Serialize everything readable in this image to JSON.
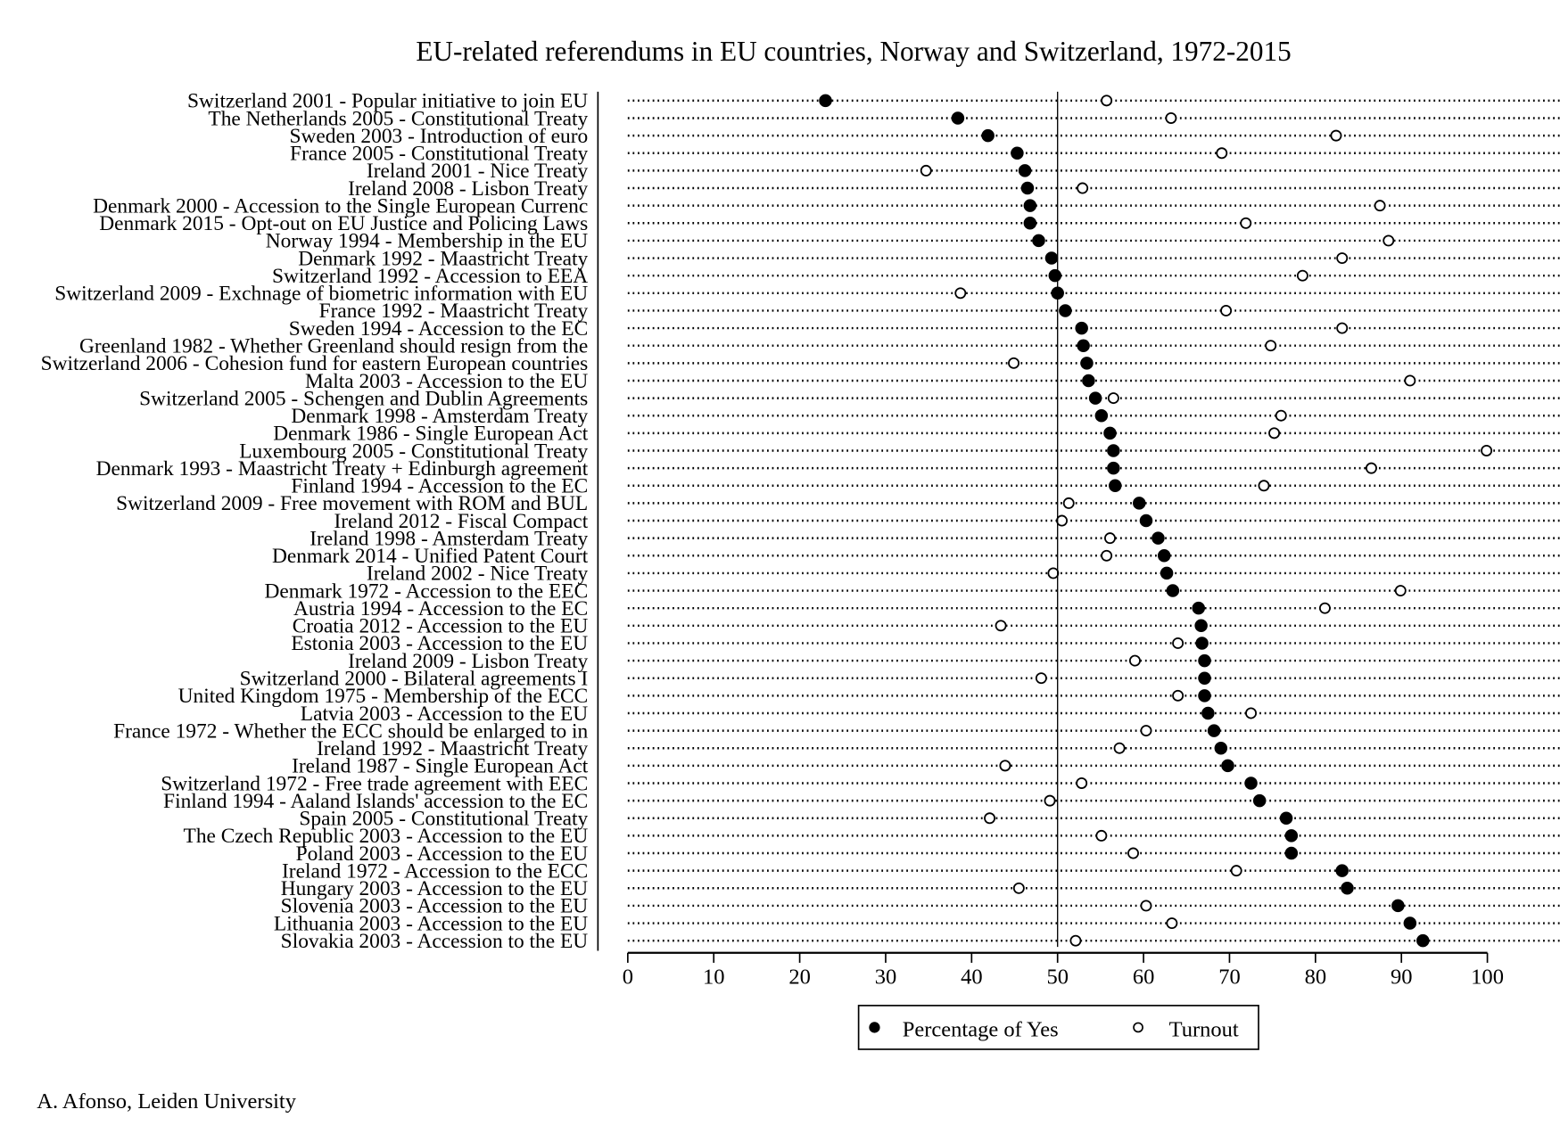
{
  "chart_data": {
    "type": "scatter",
    "title": "EU-related referendums in EU countries, Norway and Switzerland, 1972-2015",
    "xlabel": "",
    "ylabel": "",
    "xlim": [
      0,
      100
    ],
    "xticks": [
      "0",
      "10",
      "20",
      "30",
      "40",
      "50",
      "60",
      "70",
      "80",
      "90",
      "100"
    ],
    "reference_line": 50,
    "legend": {
      "placement": "bottom-center",
      "entries": [
        "Percentage of Yes",
        "Turnout"
      ]
    },
    "categories": [
      "Switzerland 2001 - Popular initiative to join EU",
      "The Netherlands 2005 - Constitutional Treaty",
      "Sweden 2003 - Introduction of euro",
      "France 2005 - Constitutional Treaty",
      "Ireland 2001 - Nice Treaty",
      "Ireland 2008 - Lisbon Treaty",
      "Denmark 2000 - Accession to the Single European Currenc",
      "Denmark 2015 - Opt-out on EU Justice and Policing Laws",
      "Norway 1994 - Membership in the EU",
      "Denmark 1992 - Maastricht Treaty",
      "Switzerland 1992 - Accession to EEA",
      "Switzerland 2009 - Exchnage of biometric information with EU",
      "France 1992 - Maastricht Treaty",
      "Sweden 1994 - Accession to the EC",
      "Greenland 1982 - Whether Greenland should resign from the",
      "Switzerland 2006 - Cohesion fund for eastern European countries",
      "Malta 2003 - Accession to the EU",
      "Switzerland 2005 - Schengen and Dublin Agreements",
      "Denmark 1998 - Amsterdam Treaty",
      "Denmark 1986 - Single European Act",
      "Luxembourg 2005 - Constitutional Treaty",
      "Denmark 1993 - Maastricht Treaty + Edinburgh agreement",
      "Finland 1994 - Accession to the EC",
      "Switzerland 2009 - Free movement with ROM and BUL",
      "Ireland 2012 - Fiscal Compact",
      "Ireland 1998 - Amsterdam Treaty",
      "Denmark 2014 - Unified Patent Court",
      "Ireland 2002 - Nice Treaty",
      "Denmark 1972 - Accession to the EEC",
      "Austria 1994 - Accession to the EC",
      "Croatia 2012 - Accession to the EU",
      "Estonia 2003 - Accession to the EU",
      "Ireland 2009 - Lisbon Treaty",
      "Switzerland 2000 - Bilateral agreements I",
      "United Kingdom 1975 - Membership of the ECC",
      "Latvia 2003 - Accession to the EU",
      "France 1972 - Whether the ECC should be enlarged to in",
      "Ireland 1992 - Maastricht Treaty",
      "Ireland 1987 - Single European Act",
      "Switzerland 1972 - Free trade agreement with EEC",
      "Finland 1994 - Aaland Islands' accession to the EC",
      "Spain 2005 - Constitutional Treaty",
      "The Czech Republic 2003 - Accession to the EU",
      "Poland 2003 - Accession to the EU",
      "Ireland 1972 - Accession to the ECC",
      "Hungary 2003 - Accession to the EU",
      "Slovenia 2003 - Accession to the EU",
      "Lithuania 2003 - Accession to the EU",
      "Slovakia 2003 - Accession to the EU"
    ],
    "series": [
      {
        "name": "Percentage of Yes",
        "marker": "filled-circle",
        "color": "#000000",
        "values": [
          23.0,
          38.4,
          41.9,
          45.3,
          46.2,
          46.5,
          46.8,
          46.8,
          47.8,
          49.3,
          49.7,
          50.0,
          50.9,
          52.8,
          53.0,
          53.4,
          53.6,
          54.4,
          55.1,
          56.1,
          56.5,
          56.5,
          56.7,
          59.5,
          60.3,
          61.7,
          62.4,
          62.7,
          63.4,
          66.4,
          66.7,
          66.8,
          67.1,
          67.1,
          67.1,
          67.5,
          68.2,
          69.0,
          69.8,
          72.5,
          73.5,
          76.6,
          77.2,
          77.2,
          83.1,
          83.7,
          89.6,
          91.0,
          92.5
        ]
      },
      {
        "name": "Turnout",
        "marker": "hollow-circle",
        "color": "#000000",
        "values": [
          55.7,
          63.2,
          82.4,
          69.1,
          34.7,
          52.9,
          87.5,
          71.9,
          88.5,
          83.1,
          78.5,
          38.7,
          69.6,
          83.1,
          74.8,
          44.9,
          91.0,
          56.5,
          76.0,
          75.2,
          99.9,
          86.5,
          74.0,
          51.3,
          50.5,
          56.1,
          55.7,
          49.5,
          89.9,
          81.1,
          43.4,
          64.0,
          59.0,
          48.1,
          64.0,
          72.5,
          60.3,
          57.2,
          43.9,
          52.8,
          49.1,
          42.1,
          55.1,
          58.8,
          70.8,
          45.5,
          60.3,
          63.3,
          52.1
        ]
      }
    ]
  },
  "footer": {
    "credit": "A. Afonso, Leiden University"
  }
}
